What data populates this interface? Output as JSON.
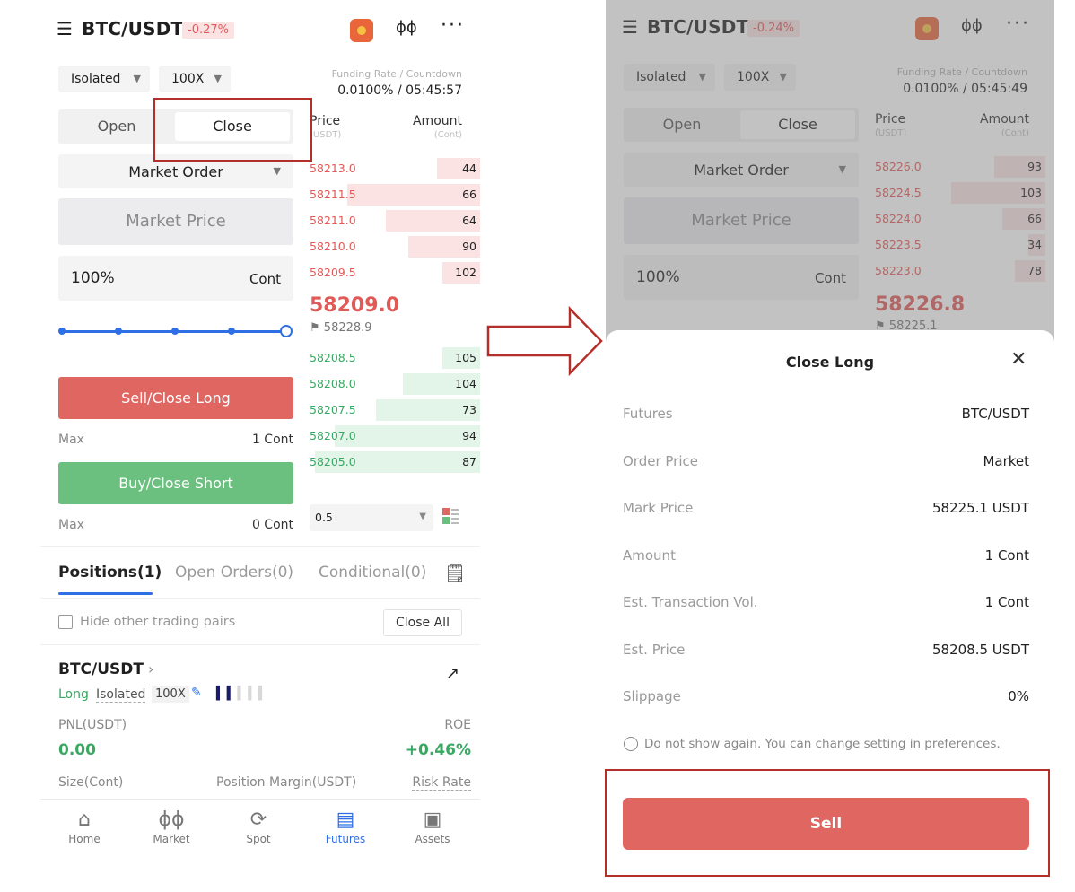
{
  "left": {
    "header": {
      "pair": "BTC/USDT",
      "change": "-0.27%"
    },
    "margin_mode": "Isolated",
    "leverage": "100X",
    "funding": {
      "label": "Funding Rate / Countdown",
      "value": "0.0100% / 05:45:57"
    },
    "tabs": {
      "open": "Open",
      "close": "Close",
      "active": "close"
    },
    "order_type": "Market Order",
    "market_price": "Market Price",
    "amount": {
      "value": "100%",
      "unit": "Cont"
    },
    "slider_percent": 100,
    "sell_button": "Sell/Close Long",
    "sell_max": {
      "label": "Max",
      "value": "1 Cont"
    },
    "buy_button": "Buy/Close Short",
    "buy_max": {
      "label": "Max",
      "value": "0 Cont"
    },
    "orderbook": {
      "price_label": "Price",
      "price_unit": "(USDT)",
      "amount_label": "Amount",
      "amount_unit": "(Cont)",
      "asks": [
        {
          "price": "58213.0",
          "amount": "44",
          "depth": 0.25
        },
        {
          "price": "58211.5",
          "amount": "66",
          "depth": 0.78
        },
        {
          "price": "58211.0",
          "amount": "64",
          "depth": 0.55
        },
        {
          "price": "58210.0",
          "amount": "90",
          "depth": 0.42
        },
        {
          "price": "58209.5",
          "amount": "102",
          "depth": 0.22
        }
      ],
      "last_price": "58209.0",
      "mark_price": "58228.9",
      "bids": [
        {
          "price": "58208.5",
          "amount": "105",
          "depth": 0.22
        },
        {
          "price": "58208.0",
          "amount": "104",
          "depth": 0.45
        },
        {
          "price": "58207.5",
          "amount": "73",
          "depth": 0.61
        },
        {
          "price": "58207.0",
          "amount": "94",
          "depth": 0.85
        },
        {
          "price": "58205.0",
          "amount": "87",
          "depth": 0.97
        }
      ],
      "precision": "0.5"
    },
    "positions": {
      "tabs": [
        "Positions(1)",
        "Open Orders(0)",
        "Conditional(0)"
      ],
      "hide_label": "Hide other trading pairs",
      "close_all": "Close All",
      "pair": "BTC/USDT",
      "side": "Long",
      "mode": "Isolated",
      "leverage": "100X",
      "pnl_label": "PNL(USDT)",
      "pnl_value": "0.00",
      "roe_label": "ROE",
      "roe_value": "+0.46%",
      "size_label": "Size(Cont)",
      "margin_label": "Position Margin(USDT)",
      "risk_label": "Risk Rate"
    },
    "nav": [
      {
        "label": "Home",
        "icon": "home-icon",
        "glyph": "⌂"
      },
      {
        "label": "Market",
        "icon": "candlestick-icon",
        "glyph": "ɸɸ"
      },
      {
        "label": "Spot",
        "icon": "spot-icon",
        "glyph": "⟳"
      },
      {
        "label": "Futures",
        "icon": "futures-icon",
        "glyph": "▤"
      },
      {
        "label": "Assets",
        "icon": "wallet-icon",
        "glyph": "▣"
      }
    ],
    "nav_active": "Futures"
  },
  "right": {
    "header": {
      "pair": "BTC/USDT",
      "change": "-0.24%"
    },
    "margin_mode": "Isolated",
    "leverage": "100X",
    "funding": {
      "label": "Funding Rate / Countdown",
      "value": "0.0100% / 05:45:49"
    },
    "tabs": {
      "open": "Open",
      "close": "Close"
    },
    "order_type": "Market Order",
    "market_price": "Market Price",
    "amount": {
      "value": "100%",
      "unit": "Cont"
    },
    "orderbook": {
      "price_label": "Price",
      "price_unit": "(USDT)",
      "amount_label": "Amount",
      "amount_unit": "(Cont)",
      "asks": [
        {
          "price": "58226.0",
          "amount": "93",
          "depth": 0.3
        },
        {
          "price": "58224.5",
          "amount": "103",
          "depth": 0.55
        },
        {
          "price": "58224.0",
          "amount": "66",
          "depth": 0.25
        },
        {
          "price": "58223.5",
          "amount": "34",
          "depth": 0.1
        },
        {
          "price": "58223.0",
          "amount": "78",
          "depth": 0.18
        }
      ],
      "last_price": "58226.8",
      "mark_price": "58225.1"
    },
    "dialog": {
      "title": "Close Long",
      "rows": [
        {
          "label": "Futures",
          "value": "BTC/USDT"
        },
        {
          "label": "Order Price",
          "value": "Market"
        },
        {
          "label": "Mark Price",
          "value": "58225.1 USDT"
        },
        {
          "label": "Amount",
          "value": "1 Cont"
        },
        {
          "label": "Est. Transaction Vol.",
          "value": "1 Cont"
        },
        {
          "label": "Est. Price",
          "value": "58208.5 USDT"
        },
        {
          "label": "Slippage",
          "value": "0%"
        }
      ],
      "dont_show": "Do not show again. You can change setting in preferences.",
      "sell_button": "Sell"
    }
  },
  "colors": {
    "ask": "#e05a57",
    "bid": "#3aa763",
    "accent": "#2f6fe6",
    "sell": "#e06661",
    "buy": "#6bbf7f",
    "highlight": "#b3302a"
  }
}
